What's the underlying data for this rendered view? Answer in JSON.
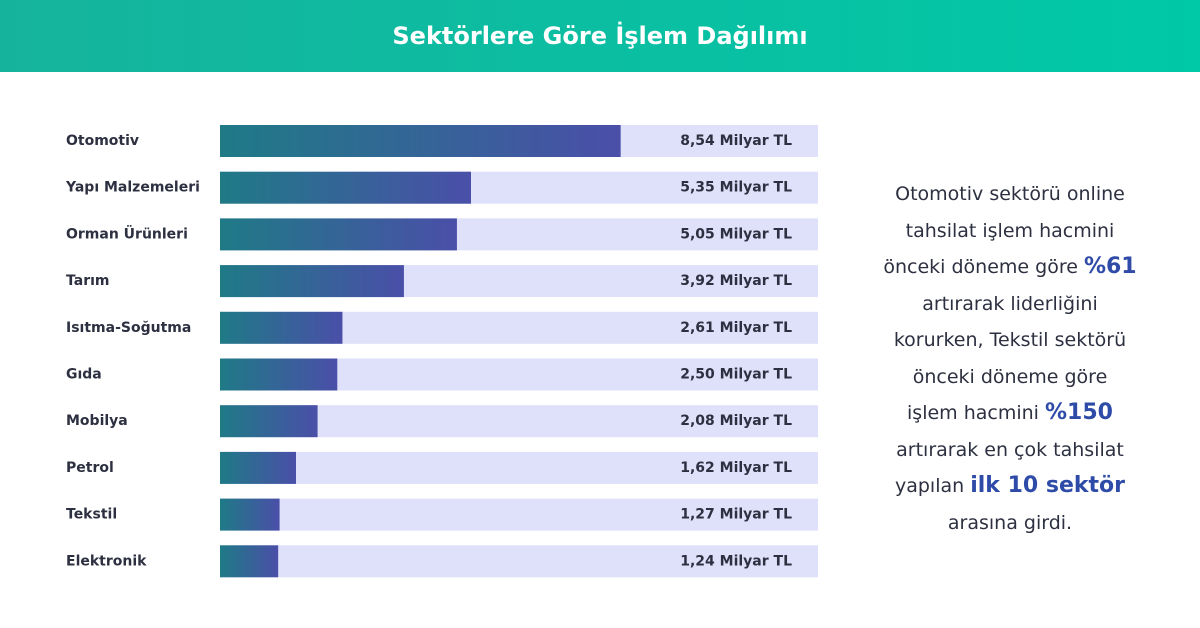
{
  "chart_data": {
    "type": "bar",
    "orientation": "horizontal",
    "title": "Sektörlere Göre İşlem Dağılımı",
    "categories": [
      "Otomotiv",
      "Yapı Malzemeleri",
      "Orman Ürünleri",
      "Tarım",
      "Isıtma-Soğutma",
      "Gıda",
      "Mobilya",
      "Petrol",
      "Tekstil",
      "Elektronik"
    ],
    "values": [
      8.54,
      5.35,
      5.05,
      3.92,
      2.61,
      2.5,
      2.08,
      1.62,
      1.27,
      1.24
    ],
    "value_labels": [
      "8,54 Milyar TL",
      "5,35 Milyar TL",
      "5,05 Milyar TL",
      "3,92 Milyar TL",
      "2,61 Milyar TL",
      "2,50 Milyar TL",
      "2,08 Milyar TL",
      "1,62 Milyar TL",
      "1,27 Milyar TL",
      "1,24 Milyar TL"
    ],
    "color": "#4a4fa8"
  },
  "callout": [
    [
      {
        "text": "Otomotiv sektörü online",
        "bold": false
      }
    ],
    [
      {
        "text": "tahsilat işlem hacmini",
        "bold": false
      }
    ],
    [
      {
        "text": "önceki döneme göre ",
        "bold": false
      },
      {
        "text": "%61",
        "bold": true
      }
    ],
    [
      {
        "text": "artırarak liderliğini",
        "bold": false
      }
    ],
    [
      {
        "text": "korurken, Tekstil sektörü",
        "bold": false
      }
    ],
    [
      {
        "text": "önceki döneme göre",
        "bold": false
      }
    ],
    [
      {
        "text": "işlem hacmini ",
        "bold": false
      },
      {
        "text": "%150",
        "bold": true
      }
    ],
    [
      {
        "text": "artırarak en çok tahsilat",
        "bold": false
      }
    ],
    [
      {
        "text": "yapılan ",
        "bold": false
      },
      {
        "text": "ilk 10 sektör",
        "bold": true
      }
    ],
    [
      {
        "text": "arasına girdi.",
        "bold": false
      }
    ]
  ]
}
